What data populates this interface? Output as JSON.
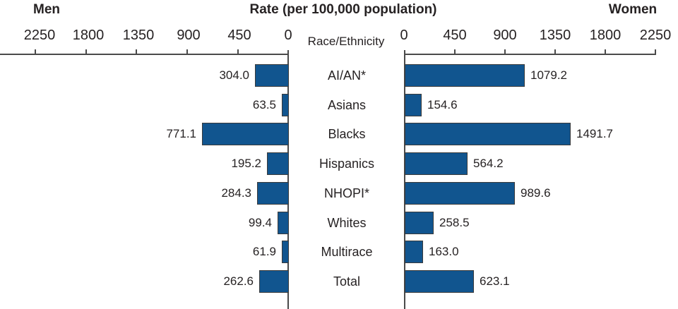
{
  "header": {
    "left_group_label": "Men",
    "title": "Rate (per 100,000 population)",
    "right_group_label": "Women"
  },
  "colors": {
    "bar_fill": "#11558F",
    "bar_border": "#3B3B3B",
    "axis_line": "#4A4A4A",
    "text": "#262223"
  },
  "chart_data": {
    "type": "bar",
    "variant": "back-to-back horizontal bars (butterfly chart)",
    "title": "Rate (per 100,000 population)",
    "categories_label": "Race/Ethnicity",
    "categories": [
      "AI/AN*",
      "Asians",
      "Blacks",
      "Hispanics",
      "NHOPI*",
      "Whites",
      "Multirace",
      "Total"
    ],
    "series": [
      {
        "name": "Men",
        "values": [
          304.0,
          63.5,
          771.1,
          195.2,
          284.3,
          99.4,
          61.9,
          262.6
        ]
      },
      {
        "name": "Women",
        "values": [
          1079.2,
          154.6,
          1491.7,
          564.2,
          989.6,
          258.5,
          163.0,
          623.1
        ]
      }
    ],
    "axis": {
      "max": 2250,
      "tick_interval": 450,
      "left_ticks": [
        "2250",
        "1800",
        "1350",
        "900",
        "450",
        "0"
      ],
      "right_ticks": [
        "0",
        "450",
        "900",
        "1350",
        "1800",
        "2250"
      ]
    },
    "rows": [
      {
        "category": "AI/AN*",
        "men": "304.0",
        "women": "1079.2"
      },
      {
        "category": "Asians",
        "men": "63.5",
        "women": "154.6"
      },
      {
        "category": "Blacks",
        "men": "771.1",
        "women": "1491.7"
      },
      {
        "category": "Hispanics",
        "men": "195.2",
        "women": "564.2"
      },
      {
        "category": "NHOPI*",
        "men": "284.3",
        "women": "989.6"
      },
      {
        "category": "Whites",
        "men": "99.4",
        "women": "258.5"
      },
      {
        "category": "Multirace",
        "men": "61.9",
        "women": "163.0"
      },
      {
        "category": "Total",
        "men": "262.6",
        "women": "623.1"
      }
    ]
  }
}
